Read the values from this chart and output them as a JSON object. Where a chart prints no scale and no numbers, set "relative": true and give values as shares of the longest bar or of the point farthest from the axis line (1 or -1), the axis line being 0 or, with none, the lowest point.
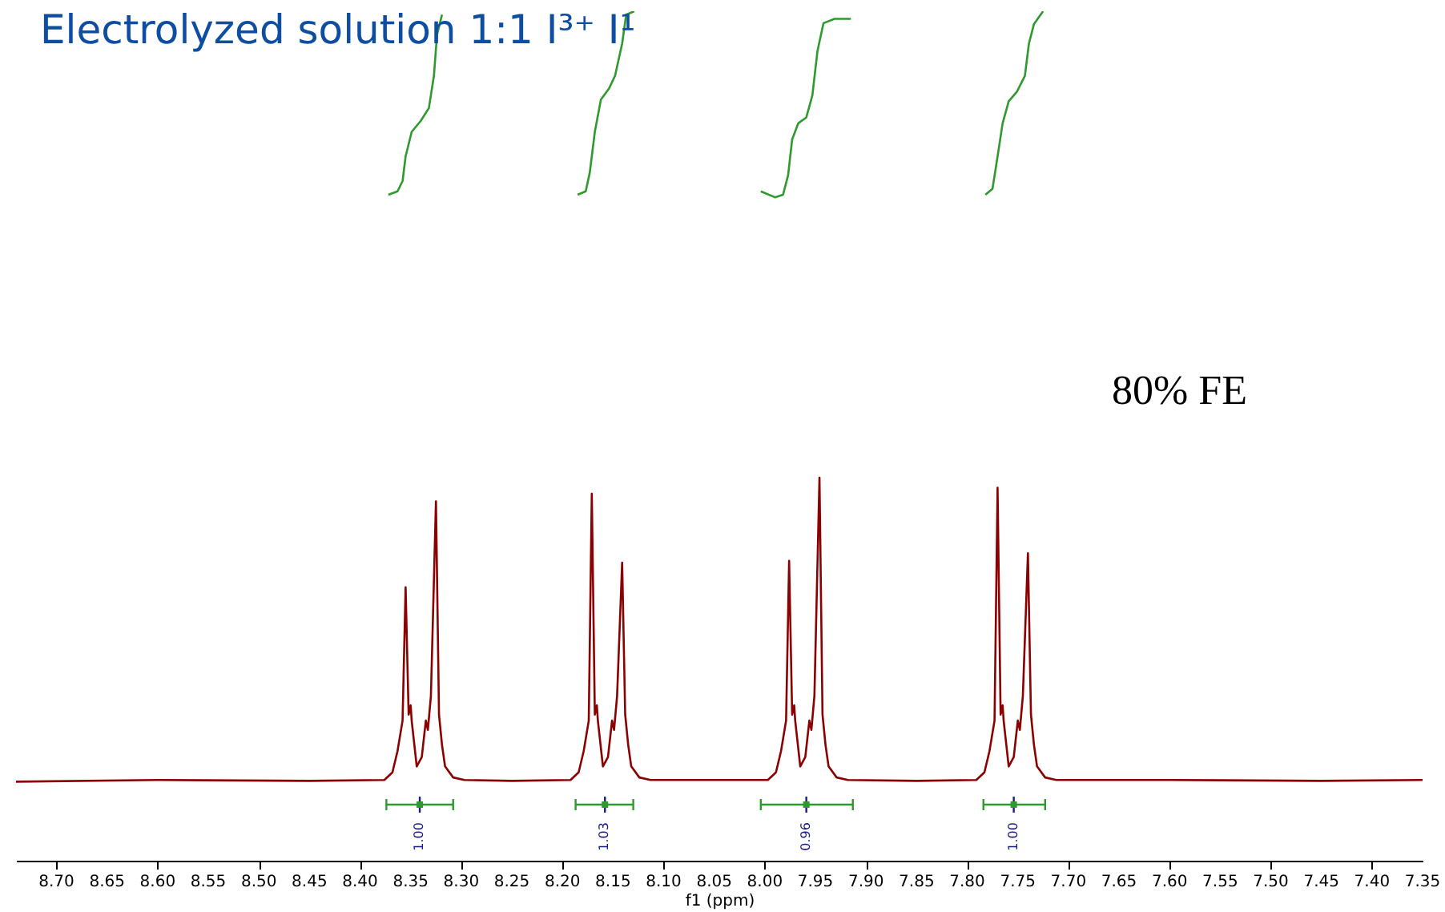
{
  "chart_data": {
    "type": "line",
    "title": "Electrolyzed solution 1:1 I³⁺ I¹",
    "xlabel": "f1 (ppm)",
    "relative": true,
    "xlim": [
      8.74,
      7.35
    ],
    "xticks": [
      {
        "value": 8.7,
        "label": "8.70"
      },
      {
        "value": 8.65,
        "label": "8.65"
      },
      {
        "value": 8.6,
        "label": "8.60"
      },
      {
        "value": 8.55,
        "label": "8.55"
      },
      {
        "value": 8.5,
        "label": "8.50"
      },
      {
        "value": 8.45,
        "label": "8.45"
      },
      {
        "value": 8.4,
        "label": "8.40"
      },
      {
        "value": 8.35,
        "label": "8.35"
      },
      {
        "value": 8.3,
        "label": "8.30"
      },
      {
        "value": 8.25,
        "label": "8.25"
      },
      {
        "value": 8.2,
        "label": "8.20"
      },
      {
        "value": 8.15,
        "label": "8.15"
      },
      {
        "value": 8.1,
        "label": "8.10"
      },
      {
        "value": 8.05,
        "label": "8.05"
      },
      {
        "value": 8.0,
        "label": "8.00"
      },
      {
        "value": 7.95,
        "label": "7.95"
      },
      {
        "value": 7.9,
        "label": "7.90"
      },
      {
        "value": 7.85,
        "label": "7.85"
      },
      {
        "value": 7.8,
        "label": "7.80"
      },
      {
        "value": 7.75,
        "label": "7.75"
      },
      {
        "value": 7.7,
        "label": "7.70"
      },
      {
        "value": 7.65,
        "label": "7.65"
      },
      {
        "value": 7.6,
        "label": "7.60"
      },
      {
        "value": 7.55,
        "label": "7.55"
      },
      {
        "value": 7.5,
        "label": "7.50"
      },
      {
        "value": 7.45,
        "label": "7.45"
      },
      {
        "value": 7.4,
        "label": "7.40"
      },
      {
        "value": 7.35,
        "label": "7.35"
      }
    ],
    "series": [
      {
        "color": "#8b0000",
        "x": [
          8.74,
          8.6,
          8.45,
          8.376,
          8.368,
          8.363,
          8.358,
          8.355,
          8.352,
          8.35,
          8.349,
          8.344,
          8.339,
          8.335,
          8.333,
          8.33,
          8.325,
          8.322,
          8.319,
          8.316,
          8.308,
          8.297,
          8.25,
          8.192,
          8.184,
          8.179,
          8.174,
          8.171,
          8.168,
          8.166,
          8.165,
          8.16,
          8.155,
          8.151,
          8.149,
          8.146,
          8.141,
          8.138,
          8.135,
          8.132,
          8.124,
          8.113,
          8.05,
          7.997,
          7.989,
          7.984,
          7.979,
          7.976,
          7.973,
          7.971,
          7.97,
          7.965,
          7.96,
          7.956,
          7.954,
          7.951,
          7.946,
          7.943,
          7.94,
          7.937,
          7.929,
          7.918,
          7.85,
          7.791,
          7.783,
          7.778,
          7.773,
          7.77,
          7.767,
          7.765,
          7.764,
          7.759,
          7.754,
          7.75,
          7.748,
          7.745,
          7.74,
          7.737,
          7.734,
          7.731,
          7.723,
          7.712,
          7.6,
          7.45,
          7.35
        ],
        "values": [
          0.093,
          0.095,
          0.094,
          0.095,
          0.104,
          0.129,
          0.165,
          0.322,
          0.172,
          0.183,
          0.165,
          0.111,
          0.122,
          0.165,
          0.154,
          0.194,
          0.423,
          0.172,
          0.136,
          0.111,
          0.098,
          0.095,
          0.094,
          0.095,
          0.104,
          0.129,
          0.165,
          0.432,
          0.172,
          0.183,
          0.165,
          0.111,
          0.122,
          0.165,
          0.154,
          0.194,
          0.351,
          0.172,
          0.136,
          0.111,
          0.098,
          0.095,
          0.095,
          0.095,
          0.104,
          0.129,
          0.165,
          0.353,
          0.172,
          0.183,
          0.165,
          0.111,
          0.122,
          0.165,
          0.154,
          0.194,
          0.451,
          0.172,
          0.136,
          0.111,
          0.098,
          0.095,
          0.094,
          0.095,
          0.104,
          0.129,
          0.165,
          0.439,
          0.172,
          0.183,
          0.165,
          0.111,
          0.122,
          0.165,
          0.154,
          0.194,
          0.362,
          0.172,
          0.136,
          0.111,
          0.098,
          0.095,
          0.095,
          0.094,
          0.095
        ]
      },
      {
        "color": "#2e9a2e",
        "x": [
          8.372,
          8.363,
          8.358,
          8.355,
          8.349,
          8.34,
          8.332,
          8.327,
          8.324,
          8.319
        ],
        "values": [
          0.784,
          0.788,
          0.8,
          0.829,
          0.858,
          0.871,
          0.886,
          0.924,
          0.972,
          0.996
        ]
      },
      {
        "color": "#2e9a2e",
        "x": [
          8.185,
          8.177,
          8.173,
          8.168,
          8.162,
          8.154,
          8.148,
          8.141,
          8.137,
          8.129
        ],
        "values": [
          0.784,
          0.788,
          0.81,
          0.858,
          0.896,
          0.909,
          0.924,
          0.962,
          0.996,
          1.0
        ]
      },
      {
        "color": "#2e9a2e",
        "x": [
          8.004,
          7.99,
          7.982,
          7.977,
          7.973,
          7.967,
          7.959,
          7.953,
          7.948,
          7.942,
          7.931,
          7.915
        ],
        "values": [
          0.788,
          0.781,
          0.784,
          0.807,
          0.849,
          0.868,
          0.875,
          0.901,
          0.953,
          0.986,
          0.991,
          0.991
        ]
      },
      {
        "color": "#2e9a2e",
        "x": [
          7.782,
          7.775,
          7.77,
          7.765,
          7.759,
          7.751,
          7.743,
          7.739,
          7.734,
          7.725
        ],
        "values": [
          0.784,
          0.791,
          0.829,
          0.868,
          0.894,
          0.905,
          0.924,
          0.962,
          0.985,
          1.0
        ]
      },
      {
        "type": "scatter",
        "color": "#2e9a2e",
        "x": [
          8.341,
          8.158,
          7.959,
          7.754
        ],
        "values": [
          0.066,
          0.066,
          0.066,
          0.066
        ],
        "xerrors": [
          [
            8.308,
            8.374
          ],
          [
            8.13,
            8.187
          ],
          [
            7.913,
            8.004
          ],
          [
            7.723,
            7.784
          ]
        ]
      }
    ],
    "annotations": [
      {
        "text": "1.00",
        "x": 8.341,
        "y": 0.066
      },
      {
        "text": "1.03",
        "x": 8.158,
        "y": 0.066
      },
      {
        "text": "0.96",
        "x": 7.959,
        "y": 0.066
      },
      {
        "text": "1.00",
        "x": 7.754,
        "y": 0.066
      },
      "80% FE"
    ]
  }
}
